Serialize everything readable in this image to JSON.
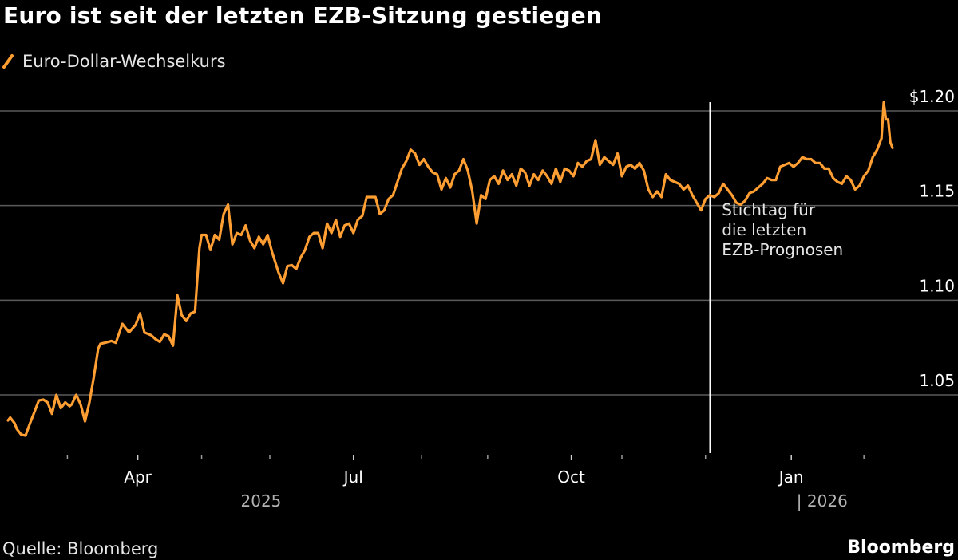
{
  "title": "Euro ist seit der letzten EZB-Sitzung gestiegen",
  "source": "Quelle: Bloomberg",
  "brand": "Bloomberg",
  "colors": {
    "background": "#000000",
    "series": "#ff9e32",
    "grid": "#5a5a5a",
    "text": "#ffffff"
  },
  "chart_data": {
    "type": "line",
    "title": "Euro ist seit der letzten EZB-Sitzung gestiegen",
    "xlabel": "",
    "ylabel": "",
    "grid": true,
    "legend_position": "top-left",
    "ylim": [
      1.02,
      1.21
    ],
    "y_ticks": [
      {
        "value": 1.2,
        "label": "$1.20"
      },
      {
        "value": 1.15,
        "label": "1.15"
      },
      {
        "value": 1.1,
        "label": "1.10"
      },
      {
        "value": 1.05,
        "label": "1.05"
      }
    ],
    "x_range": [
      0,
      402
    ],
    "x_tick_labels": [
      {
        "label": "Apr",
        "day": 59
      },
      {
        "label": "Jul",
        "day": 157
      },
      {
        "label": "Oct",
        "day": 256
      },
      {
        "label": "Jan",
        "day": 356
      }
    ],
    "x_minor_ticks": [
      27,
      88,
      119,
      188,
      218,
      279,
      317,
      389
    ],
    "year_labels": [
      {
        "label": "2025",
        "day": 115
      },
      {
        "label": "| 2026",
        "day": 370
      }
    ],
    "annotation": {
      "day": 319,
      "lines": [
        "Stichtag für",
        "die letzten",
        "EZB-Prognosen"
      ]
    },
    "series": [
      {
        "name": "Euro-Dollar-Wechselkurs",
        "color": "#ff9e32",
        "points": [
          [
            0,
            1.0365
          ],
          [
            1,
            1.038
          ],
          [
            3,
            1.035
          ],
          [
            4,
            1.032
          ],
          [
            6,
            1.029
          ],
          [
            8,
            1.0285
          ],
          [
            10,
            1.035
          ],
          [
            12,
            1.041
          ],
          [
            14,
            1.047
          ],
          [
            16,
            1.0475
          ],
          [
            18,
            1.046
          ],
          [
            20,
            1.04
          ],
          [
            22,
            1.05
          ],
          [
            24,
            1.043
          ],
          [
            26,
            1.046
          ],
          [
            28,
            1.044
          ],
          [
            29,
            1.045
          ],
          [
            31,
            1.05
          ],
          [
            33,
            1.045
          ],
          [
            35,
            1.036
          ],
          [
            37,
            1.046
          ],
          [
            39,
            1.0595
          ],
          [
            41,
            1.0745
          ],
          [
            42,
            1.077
          ],
          [
            44,
            1.0775
          ],
          [
            47,
            1.0785
          ],
          [
            49,
            1.0775
          ],
          [
            52,
            1.0875
          ],
          [
            55,
            1.083
          ],
          [
            58,
            1.087
          ],
          [
            60,
            1.093
          ],
          [
            62,
            1.083
          ],
          [
            65,
            1.0815
          ],
          [
            67,
            1.0795
          ],
          [
            69,
            1.078
          ],
          [
            71,
            1.082
          ],
          [
            73,
            1.081
          ],
          [
            75,
            1.076
          ],
          [
            77,
            1.1025
          ],
          [
            79,
            1.092
          ],
          [
            81,
            1.089
          ],
          [
            83,
            1.093
          ],
          [
            85,
            1.094
          ],
          [
            87,
            1.1275
          ],
          [
            88,
            1.1345
          ],
          [
            90,
            1.1345
          ],
          [
            92,
            1.1265
          ],
          [
            94,
            1.1345
          ],
          [
            96,
            1.132
          ],
          [
            98,
            1.1455
          ],
          [
            100,
            1.1505
          ],
          [
            102,
            1.1295
          ],
          [
            104,
            1.1355
          ],
          [
            106,
            1.1345
          ],
          [
            108,
            1.1395
          ],
          [
            110,
            1.1315
          ],
          [
            112,
            1.1275
          ],
          [
            114,
            1.1335
          ],
          [
            116,
            1.1295
          ],
          [
            118,
            1.1345
          ],
          [
            120,
            1.1255
          ],
          [
            123,
            1.1145
          ],
          [
            125,
            1.109
          ],
          [
            127,
            1.118
          ],
          [
            129,
            1.1185
          ],
          [
            131,
            1.1165
          ],
          [
            133,
            1.1225
          ],
          [
            135,
            1.1265
          ],
          [
            137,
            1.1335
          ],
          [
            139,
            1.1355
          ],
          [
            141,
            1.1355
          ],
          [
            143,
            1.1275
          ],
          [
            145,
            1.1405
          ],
          [
            147,
            1.1355
          ],
          [
            149,
            1.1425
          ],
          [
            151,
            1.1335
          ],
          [
            153,
            1.1395
          ],
          [
            155,
            1.1405
          ],
          [
            157,
            1.1355
          ],
          [
            159,
            1.1425
          ],
          [
            161,
            1.1445
          ],
          [
            163,
            1.1545
          ],
          [
            165,
            1.1545
          ],
          [
            167,
            1.1545
          ],
          [
            169,
            1.1455
          ],
          [
            171,
            1.1475
          ],
          [
            173,
            1.1535
          ],
          [
            175,
            1.1555
          ],
          [
            177,
            1.1625
          ],
          [
            179,
            1.1695
          ],
          [
            181,
            1.1735
          ],
          [
            183,
            1.1795
          ],
          [
            185,
            1.1775
          ],
          [
            187,
            1.1715
          ],
          [
            189,
            1.1745
          ],
          [
            191,
            1.1705
          ],
          [
            193,
            1.1675
          ],
          [
            195,
            1.1665
          ],
          [
            197,
            1.1585
          ],
          [
            199,
            1.1645
          ],
          [
            201,
            1.1595
          ],
          [
            203,
            1.1665
          ],
          [
            205,
            1.1685
          ],
          [
            207,
            1.1745
          ],
          [
            209,
            1.1685
          ],
          [
            211,
            1.1575
          ],
          [
            213,
            1.1405
          ],
          [
            215,
            1.1555
          ],
          [
            217,
            1.1535
          ],
          [
            219,
            1.1635
          ],
          [
            221,
            1.1655
          ],
          [
            223,
            1.1615
          ],
          [
            225,
            1.1685
          ],
          [
            227,
            1.1635
          ],
          [
            229,
            1.1665
          ],
          [
            231,
            1.1605
          ],
          [
            233,
            1.1695
          ],
          [
            235,
            1.1675
          ],
          [
            237,
            1.1605
          ],
          [
            239,
            1.1665
          ],
          [
            241,
            1.1635
          ],
          [
            243,
            1.1685
          ],
          [
            245,
            1.1655
          ],
          [
            247,
            1.1615
          ],
          [
            249,
            1.1695
          ],
          [
            251,
            1.1625
          ],
          [
            253,
            1.1695
          ],
          [
            255,
            1.1685
          ],
          [
            257,
            1.1655
          ],
          [
            259,
            1.1725
          ],
          [
            261,
            1.1705
          ],
          [
            263,
            1.1735
          ],
          [
            265,
            1.1745
          ],
          [
            267,
            1.1845
          ],
          [
            269,
            1.1715
          ],
          [
            271,
            1.1755
          ],
          [
            273,
            1.1735
          ],
          [
            275,
            1.1715
          ],
          [
            277,
            1.1775
          ],
          [
            279,
            1.1655
          ],
          [
            281,
            1.1705
          ],
          [
            283,
            1.1715
          ],
          [
            285,
            1.1695
          ],
          [
            287,
            1.1725
          ],
          [
            289,
            1.1685
          ],
          [
            291,
            1.1585
          ],
          [
            293,
            1.1545
          ],
          [
            295,
            1.1575
          ],
          [
            297,
            1.1545
          ],
          [
            299,
            1.1665
          ],
          [
            301,
            1.1635
          ],
          [
            303,
            1.1625
          ],
          [
            305,
            1.1615
          ],
          [
            307,
            1.1585
          ],
          [
            309,
            1.1605
          ],
          [
            311,
            1.1555
          ],
          [
            313,
            1.1515
          ],
          [
            315,
            1.1475
          ],
          [
            317,
            1.1535
          ],
          [
            319,
            1.1555
          ],
          [
            321,
            1.1545
          ],
          [
            323,
            1.1565
          ],
          [
            325,
            1.1615
          ],
          [
            327,
            1.1585
          ],
          [
            329,
            1.1555
          ],
          [
            331,
            1.1515
          ],
          [
            333,
            1.1505
          ],
          [
            335,
            1.1525
          ],
          [
            337,
            1.1565
          ],
          [
            339,
            1.1575
          ],
          [
            341,
            1.1595
          ],
          [
            343,
            1.1615
          ],
          [
            345,
            1.1645
          ],
          [
            347,
            1.1635
          ],
          [
            349,
            1.1635
          ],
          [
            351,
            1.1705
          ],
          [
            353,
            1.1715
          ],
          [
            355,
            1.1725
          ],
          [
            357,
            1.1705
          ],
          [
            359,
            1.1725
          ],
          [
            361,
            1.1755
          ],
          [
            363,
            1.1745
          ],
          [
            365,
            1.1745
          ],
          [
            367,
            1.1725
          ],
          [
            369,
            1.1725
          ],
          [
            371,
            1.1695
          ],
          [
            373,
            1.1695
          ],
          [
            375,
            1.1645
          ],
          [
            377,
            1.1625
          ],
          [
            379,
            1.1615
          ],
          [
            381,
            1.1655
          ],
          [
            383,
            1.1635
          ],
          [
            385,
            1.1585
          ],
          [
            387,
            1.1605
          ],
          [
            389,
            1.1655
          ],
          [
            391,
            1.1685
          ],
          [
            393,
            1.1755
          ],
          [
            395,
            1.1795
          ],
          [
            397,
            1.1855
          ],
          [
            398,
            1.2045
          ],
          [
            399,
            1.1955
          ],
          [
            400,
            1.1955
          ],
          [
            401,
            1.1835
          ],
          [
            402,
            1.1805
          ]
        ]
      }
    ]
  }
}
